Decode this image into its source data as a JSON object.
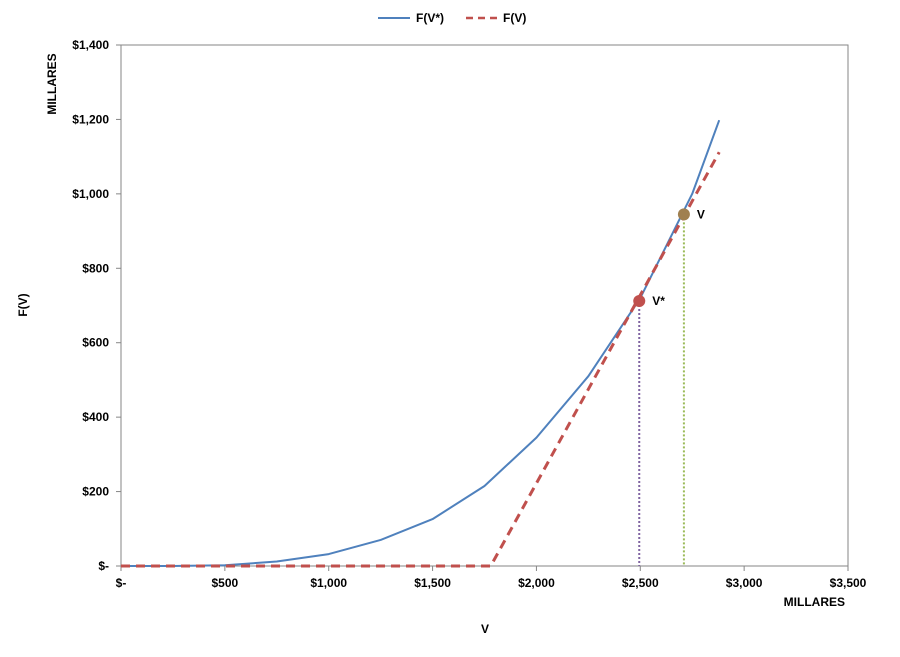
{
  "chart_data": {
    "type": "line",
    "title": "",
    "xlabel": "V",
    "ylabel": "F(V)",
    "x_unit_label": "MILLARES",
    "y_unit_label": "MILLARES",
    "xlim": [
      0,
      3500
    ],
    "ylim": [
      0,
      1400
    ],
    "x_ticks": [
      0,
      500,
      1000,
      1500,
      2000,
      2500,
      3000,
      3500
    ],
    "x_tick_labels": [
      "$-",
      "$500",
      "$1,000",
      "$1,500",
      "$2,000",
      "$2,500",
      "$3,000",
      "$3,500"
    ],
    "y_ticks": [
      0,
      200,
      400,
      600,
      800,
      1000,
      1200,
      1400
    ],
    "y_tick_labels": [
      "$-",
      "$200",
      "$400",
      "$600",
      "$800",
      "$1,000",
      "$1,200",
      "$1,400"
    ],
    "grid": false,
    "legend_position": "top-center",
    "series": [
      {
        "name": "F(V*)",
        "style": "solid",
        "color": "#4f81bd",
        "x": [
          0,
          250,
          500,
          750,
          1000,
          1250,
          1500,
          1750,
          2000,
          2250,
          2500,
          2750,
          2880
        ],
        "y": [
          0,
          0,
          2,
          12,
          32,
          70,
          126,
          215,
          345,
          510,
          720,
          1000,
          1198
        ]
      },
      {
        "name": "F(V)",
        "style": "dashed",
        "color": "#c0504d",
        "x": [
          0,
          1780,
          2880
        ],
        "y": [
          0,
          0,
          1112
        ]
      }
    ],
    "points": [
      {
        "label": "V*",
        "x": 2495,
        "y": 712,
        "color": "#c0504d",
        "drop_line_color": "#8064a2"
      },
      {
        "label": "V",
        "x": 2710,
        "y": 945,
        "color": "#a08050",
        "drop_line_color": "#9bbb59"
      }
    ]
  }
}
